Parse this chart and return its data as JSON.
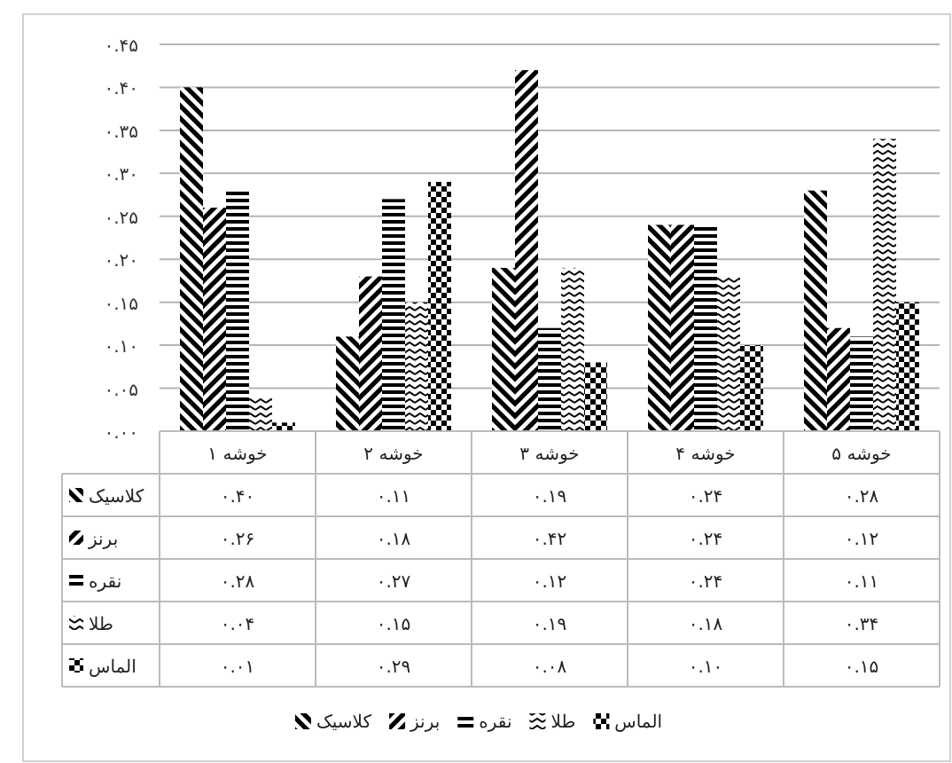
{
  "chart_data": {
    "type": "bar",
    "categories": [
      "خوشه ۱",
      "خوشه ۲",
      "خوشه ۳",
      "خوشه ۴",
      "خوشه ۵"
    ],
    "series": [
      {
        "name": "کلاسیک",
        "color": "#000000",
        "values": [
          0.4,
          0.11,
          0.19,
          0.24,
          0.28
        ],
        "value_labels": [
          "۰.۴۰",
          "۰.۱۱",
          "۰.۱۹",
          "۰.۲۴",
          "۰.۲۸"
        ]
      },
      {
        "name": "برنز",
        "color": "#000000",
        "values": [
          0.26,
          0.18,
          0.42,
          0.24,
          0.12
        ],
        "value_labels": [
          "۰.۲۶",
          "۰.۱۸",
          "۰.۴۲",
          "۰.۲۴",
          "۰.۱۲"
        ]
      },
      {
        "name": "نقره",
        "color": "#000000",
        "values": [
          0.28,
          0.27,
          0.12,
          0.24,
          0.11
        ],
        "value_labels": [
          "۰.۲۸",
          "۰.۲۷",
          "۰.۱۲",
          "۰.۲۴",
          "۰.۱۱"
        ]
      },
      {
        "name": "طلا",
        "color": "#000000",
        "values": [
          0.04,
          0.15,
          0.19,
          0.18,
          0.34
        ],
        "value_labels": [
          "۰.۰۴",
          "۰.۱۵",
          "۰.۱۹",
          "۰.۱۸",
          "۰.۳۴"
        ]
      },
      {
        "name": "الماس",
        "color": "#000000",
        "values": [
          0.01,
          0.29,
          0.08,
          0.1,
          0.15
        ],
        "value_labels": [
          "۰.۰۱",
          "۰.۲۹",
          "۰.۰۸",
          "۰.۱۰",
          "۰.۱۵"
        ]
      }
    ],
    "ylim": [
      0,
      0.45
    ],
    "yticks": [
      {
        "value": 0,
        "label": "۰.۰۰"
      },
      {
        "value": 0.05,
        "label": "۰.۰۵"
      },
      {
        "value": 0.1,
        "label": "۰.۱۰"
      },
      {
        "value": 0.15,
        "label": "۰.۱۵"
      },
      {
        "value": 0.2,
        "label": "۰.۲۰"
      },
      {
        "value": 0.25,
        "label": "۰.۲۵"
      },
      {
        "value": 0.3,
        "label": "۰.۳۰"
      },
      {
        "value": 0.35,
        "label": "۰.۳۵"
      },
      {
        "value": 0.4,
        "label": "۰.۴۰"
      },
      {
        "value": 0.45,
        "label": "۰.۴۵"
      }
    ],
    "grid": "y",
    "legend": "bottom"
  }
}
